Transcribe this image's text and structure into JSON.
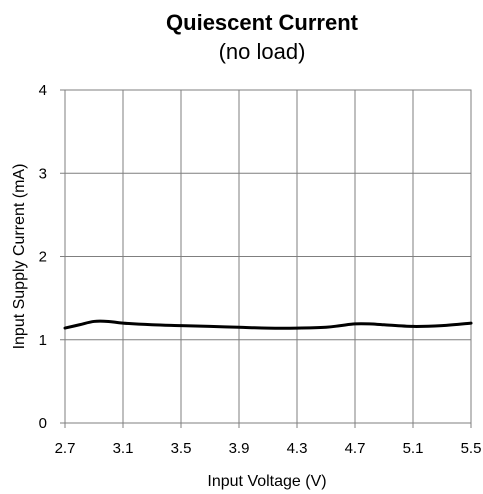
{
  "chart_data": {
    "type": "line",
    "title": "Quiescent Current",
    "subtitle": "(no load)",
    "xlabel": "Input Voltage (V)",
    "ylabel": "Input Supply Current (mA)",
    "xlim": [
      2.7,
      5.5
    ],
    "ylim": [
      0,
      4
    ],
    "xticks": [
      "2.7",
      "3.1",
      "3.5",
      "3.9",
      "4.3",
      "4.7",
      "5.1",
      "5.5"
    ],
    "yticks": [
      "0",
      "1",
      "2",
      "3",
      "4"
    ],
    "grid": true,
    "legend": "none",
    "series": [
      {
        "color": "#000000",
        "x": [
          2.7,
          2.8,
          2.9,
          3.0,
          3.1,
          3.3,
          3.5,
          3.7,
          3.9,
          4.1,
          4.3,
          4.5,
          4.6,
          4.7,
          4.8,
          4.9,
          5.1,
          5.3,
          5.5
        ],
        "y": [
          1.14,
          1.18,
          1.22,
          1.22,
          1.2,
          1.18,
          1.17,
          1.16,
          1.15,
          1.14,
          1.14,
          1.15,
          1.17,
          1.19,
          1.19,
          1.18,
          1.16,
          1.17,
          1.2
        ]
      }
    ]
  }
}
